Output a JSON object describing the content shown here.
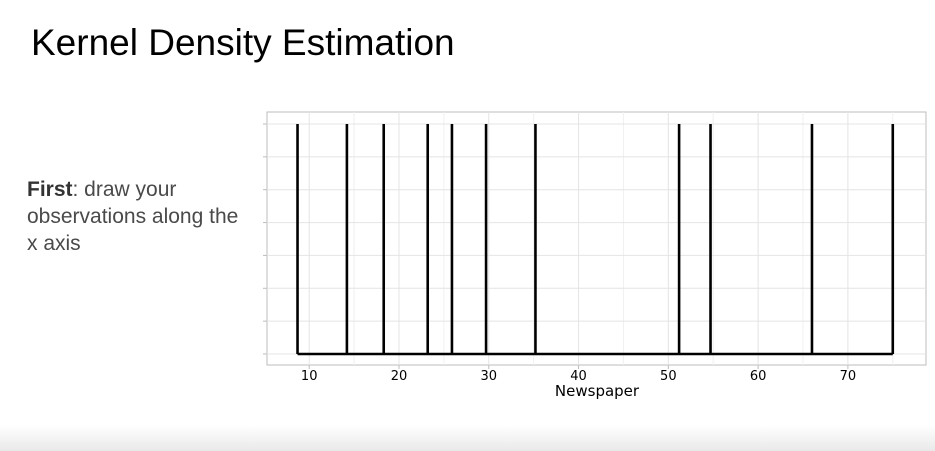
{
  "slide": {
    "title": "Kernel Density Estimation",
    "note_bold": "First",
    "note_rest": ": draw your observations along the x axis"
  },
  "chart_data": {
    "type": "rug",
    "title": "",
    "xlabel": "Newspaper",
    "ylabel": "",
    "xlim": [
      5.3,
      78.7
    ],
    "xticks": [
      10,
      20,
      30,
      40,
      50,
      60,
      70
    ],
    "observations": [
      8.7,
      14.2,
      18.3,
      23.2,
      25.9,
      29.7,
      35.2,
      51.2,
      54.7,
      66.0,
      75.0
    ],
    "grid": true,
    "colors": {
      "rug": "#000000",
      "grid": "#e4e4e4",
      "frame": "#bdbdbd"
    }
  }
}
